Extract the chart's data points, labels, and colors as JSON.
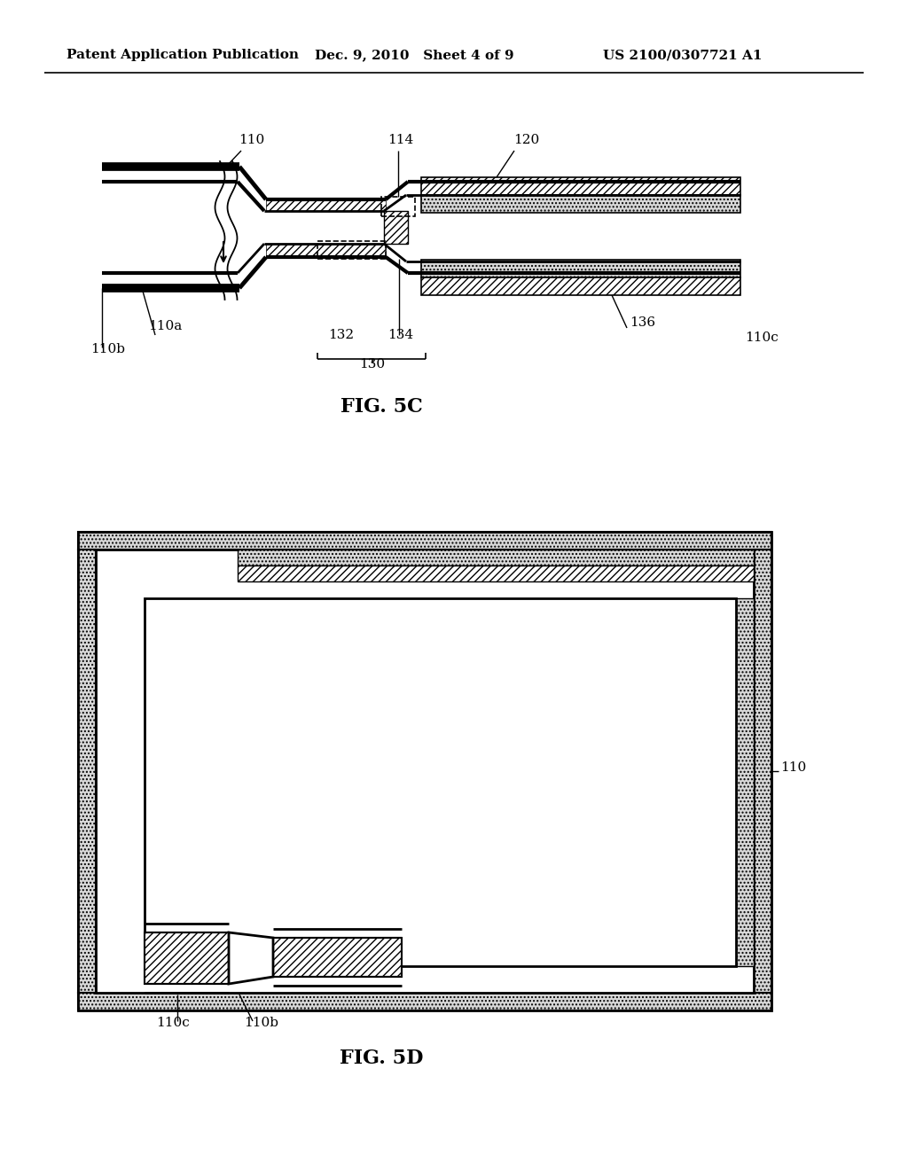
{
  "background_color": "#ffffff",
  "header_left": "Patent Application Publication",
  "header_mid": "Dec. 9, 2010   Sheet 4 of 9",
  "header_right": "US 2100/0307721 A1",
  "fig5c_label": "FIG. 5C",
  "fig5d_label": "FIG. 5D",
  "label_110": "110",
  "label_110a": "110a",
  "label_110b": "110b",
  "label_110c": "110c",
  "label_114": "114",
  "label_120": "120",
  "label_130": "130",
  "label_132": "132",
  "label_134": "134",
  "label_136": "136"
}
